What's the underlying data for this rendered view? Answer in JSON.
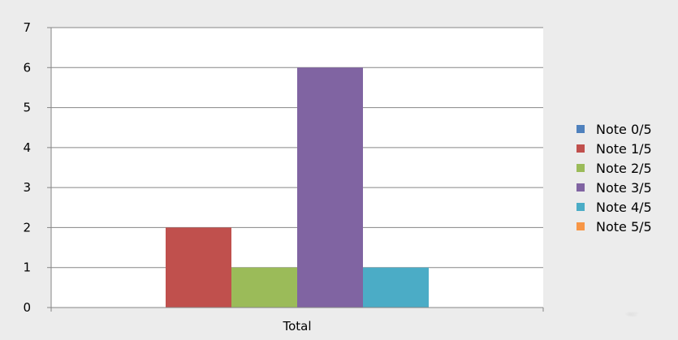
{
  "chart_data": {
    "type": "bar",
    "categories": [
      "Total"
    ],
    "series": [
      {
        "name": "Note 0/5",
        "values": [
          0
        ],
        "color": "#4F81BD"
      },
      {
        "name": "Note 1/5",
        "values": [
          2
        ],
        "color": "#C0504D"
      },
      {
        "name": "Note 2/5",
        "values": [
          1
        ],
        "color": "#9BBB59"
      },
      {
        "name": "Note 3/5",
        "values": [
          6
        ],
        "color": "#8064A2"
      },
      {
        "name": "Note 4/5",
        "values": [
          1
        ],
        "color": "#4BACC6"
      },
      {
        "name": "Note 5/5",
        "values": [
          0
        ],
        "color": "#F79646"
      }
    ],
    "ylim": [
      0,
      7
    ],
    "yticks": [
      "0",
      "1",
      "2",
      "3",
      "4",
      "5",
      "6",
      "7"
    ],
    "grid": true,
    "legend_position": "right",
    "background": "marble-texture"
  }
}
